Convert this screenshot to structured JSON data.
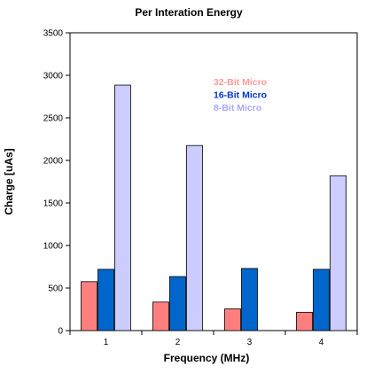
{
  "chart_data": {
    "type": "bar",
    "title": "Per Interation Energy",
    "xlabel": "Frequency (MHz)",
    "ylabel": "Charge [uAs]",
    "categories": [
      "1",
      "2",
      "3",
      "4"
    ],
    "ylim": [
      0,
      3500
    ],
    "yticks": [
      "0",
      "500",
      "1000",
      "1500",
      "2000",
      "2500",
      "3000",
      "3500"
    ],
    "grid": false,
    "legend_position": "top-right",
    "series": [
      {
        "name": "32-Bit Micro",
        "color": "#ff7f7f",
        "values": [
          575,
          335,
          255,
          215
        ]
      },
      {
        "name": "16-Bit Micro",
        "color": "#0066cc",
        "values": [
          720,
          635,
          730,
          720
        ]
      },
      {
        "name": "8-Bit Micro",
        "color": "#ccccff",
        "values": [
          2885,
          2175,
          null,
          1820
        ]
      }
    ]
  }
}
